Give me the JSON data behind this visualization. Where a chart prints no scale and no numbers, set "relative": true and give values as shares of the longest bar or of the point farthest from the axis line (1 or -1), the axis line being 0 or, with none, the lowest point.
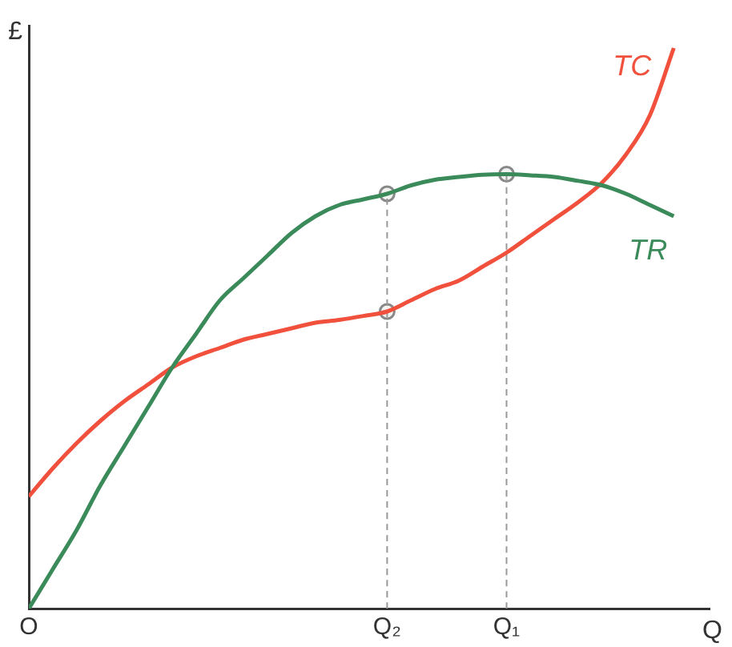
{
  "chart_data": {
    "type": "line",
    "relative": true,
    "xlabel": "Q",
    "ylabel": "£",
    "legend": false,
    "grid": false,
    "categories": [
      "O",
      null,
      null,
      null,
      null,
      null,
      null,
      null,
      null,
      null,
      null,
      null,
      null,
      null,
      null,
      "Q₂",
      null,
      null,
      null,
      null,
      "Q₁",
      null,
      null,
      null,
      null,
      null,
      null,
      null
    ],
    "series": [
      {
        "name": "TR",
        "color": "#3a8a5a",
        "values": [
          0,
          0.07,
          0.14,
          0.22,
          0.29,
          0.36,
          0.43,
          0.49,
          0.55,
          0.59,
          0.63,
          0.67,
          0.7,
          0.72,
          0.73,
          0.74,
          0.755,
          0.765,
          0.77,
          0.774,
          0.775,
          0.773,
          0.77,
          0.763,
          0.755,
          0.74,
          0.72,
          0.7
        ]
      },
      {
        "name": "TC",
        "color": "#f0503c",
        "values": [
          0.2,
          0.25,
          0.295,
          0.335,
          0.37,
          0.4,
          0.43,
          0.45,
          0.465,
          0.48,
          0.49,
          0.5,
          0.51,
          0.515,
          0.522,
          0.53,
          0.55,
          0.57,
          0.585,
          0.61,
          0.635,
          0.665,
          0.695,
          0.725,
          0.76,
          0.81,
          0.88,
          1
        ]
      },
      {
        "type": "line",
        "color": "#999999",
        "line_style": "dashed",
        "marker": "none",
        "x": [
          "Q₂",
          "Q₂"
        ],
        "values": [
          0,
          0.74
        ]
      },
      {
        "type": "line",
        "color": "#999999",
        "line_style": "dashed",
        "marker": "none",
        "x": [
          "Q₁",
          "Q₁"
        ],
        "values": [
          0,
          0.775
        ]
      },
      {
        "type": "scatter",
        "color": "#888888",
        "marker": "circle",
        "x": [
          "Q₂",
          "Q₂",
          "Q₁"
        ],
        "values": [
          0.74,
          0.53,
          0.775
        ]
      }
    ]
  }
}
